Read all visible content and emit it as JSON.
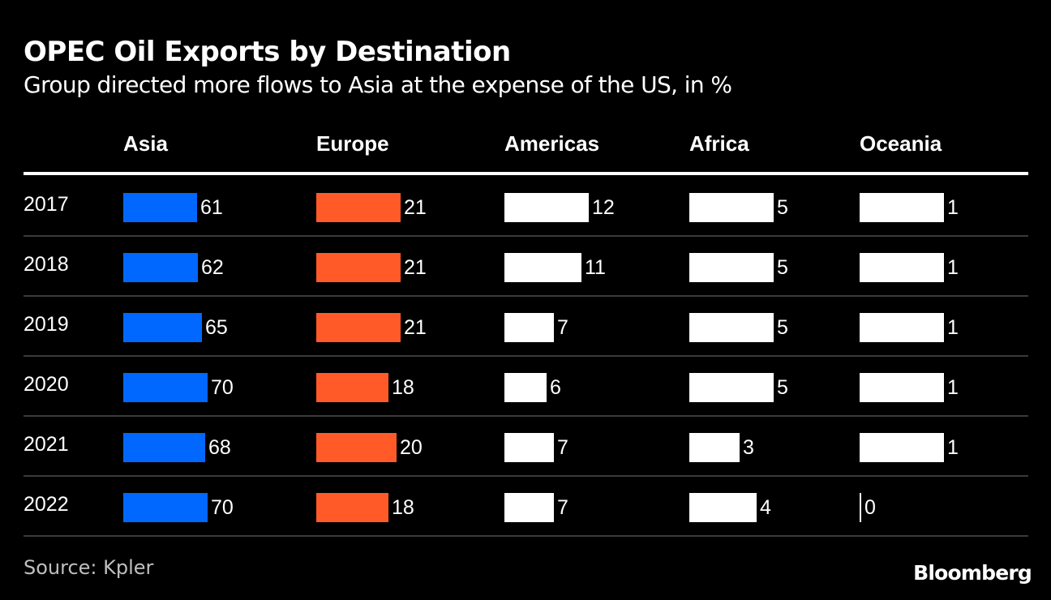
{
  "chart_data": {
    "type": "table",
    "title": "OPEC Oil Exports by Destination",
    "subtitle": "Group directed more flows to Asia at the expense of the US, in %",
    "columns": [
      "Asia",
      "Europe",
      "Americas",
      "Africa",
      "Oceania"
    ],
    "column_colors": [
      "#0068ff",
      "#ff5a28",
      "#ffffff",
      "#ffffff",
      "#ffffff"
    ],
    "rows": [
      {
        "year": "2017",
        "values": [
          61,
          21,
          12,
          5,
          1
        ]
      },
      {
        "year": "2018",
        "values": [
          62,
          21,
          11,
          5,
          1
        ]
      },
      {
        "year": "2019",
        "values": [
          65,
          21,
          7,
          5,
          1
        ]
      },
      {
        "year": "2020",
        "values": [
          70,
          18,
          6,
          5,
          1
        ]
      },
      {
        "year": "2021",
        "values": [
          68,
          20,
          7,
          3,
          1
        ]
      },
      {
        "year": "2022",
        "values": [
          70,
          18,
          7,
          4,
          0
        ]
      }
    ],
    "source": "Source: Kpler",
    "brand": "Bloomberg"
  }
}
